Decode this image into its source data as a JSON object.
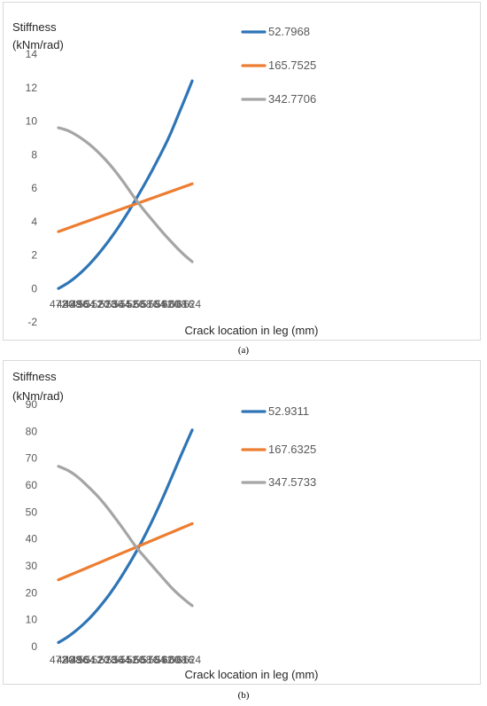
{
  "captions": [
    "(a)",
    "(b)"
  ],
  "chart_data": [
    {
      "type": "line",
      "ylabel": "Stiffness\n(kNm/rad)",
      "xlabel": "Crack location in leg (mm)",
      "categories": [
        "472",
        "480",
        "488",
        "496",
        "504",
        "512",
        "520",
        "528",
        "536",
        "544",
        "552",
        "560",
        "568",
        "576",
        "584",
        "592",
        "600",
        "608",
        "616",
        "624"
      ],
      "ylim": [
        -2,
        14
      ],
      "yticks": [
        -2,
        0,
        2,
        4,
        6,
        8,
        10,
        12,
        14
      ],
      "grid": false,
      "legend_position": "top-center, inside plot",
      "series": [
        {
          "name": "52.7968",
          "color": "#2e75b6",
          "values": [
            0.0,
            0.23,
            0.52,
            0.87,
            1.27,
            1.72,
            2.22,
            2.76,
            3.34,
            3.96,
            4.62,
            5.32,
            6.05,
            6.8,
            7.6,
            8.42,
            9.3,
            10.35,
            11.35,
            12.4
          ]
        },
        {
          "name": "165.7525",
          "color": "#ed7d31",
          "values": [
            3.4,
            3.55,
            3.7,
            3.85,
            4.0,
            4.15,
            4.3,
            4.45,
            4.6,
            4.75,
            4.9,
            5.05,
            5.2,
            5.35,
            5.5,
            5.65,
            5.8,
            5.95,
            6.1,
            6.25
          ]
        },
        {
          "name": "342.7706",
          "color": "#a5a5a5",
          "values": [
            9.6,
            9.5,
            9.3,
            9.05,
            8.75,
            8.4,
            8.0,
            7.55,
            7.05,
            6.5,
            5.9,
            5.3,
            4.75,
            4.25,
            3.75,
            3.25,
            2.8,
            2.35,
            1.95,
            1.6
          ]
        }
      ]
    },
    {
      "type": "line",
      "ylabel": "Stiffness\n(kNm/rad)",
      "xlabel": "Crack location in leg (mm)",
      "categories": [
        "472",
        "480",
        "488",
        "496",
        "504",
        "512",
        "520",
        "528",
        "536",
        "544",
        "552",
        "560",
        "568",
        "576",
        "584",
        "592",
        "600",
        "608",
        "616",
        "624"
      ],
      "ylim": [
        0,
        90
      ],
      "yticks": [
        0,
        10,
        20,
        30,
        40,
        50,
        60,
        70,
        80,
        90
      ],
      "grid": false,
      "legend_position": "top-center, inside plot",
      "series": [
        {
          "name": "52.9311",
          "color": "#2e75b6",
          "values": [
            1.5,
            3.0,
            4.9,
            7.0,
            9.4,
            12.1,
            15.2,
            18.5,
            22.2,
            26.2,
            30.5,
            35.0,
            39.8,
            45.0,
            50.5,
            56.3,
            62.4,
            68.6,
            74.6,
            80.5
          ]
        },
        {
          "name": "167.6325",
          "color": "#ed7d31",
          "values": [
            24.8,
            25.9,
            27.0,
            28.1,
            29.2,
            30.3,
            31.4,
            32.5,
            33.6,
            34.7,
            35.8,
            36.9,
            38.0,
            39.1,
            40.2,
            41.3,
            42.4,
            43.5,
            44.6,
            45.7
          ]
        },
        {
          "name": "347.5733",
          "color": "#a5a5a5",
          "values": [
            67.0,
            66.0,
            64.5,
            62.5,
            60.0,
            57.5,
            54.7,
            51.5,
            48.0,
            44.5,
            40.8,
            37.0,
            34.0,
            31.0,
            28.0,
            25.0,
            22.0,
            19.5,
            17.2,
            15.2
          ]
        }
      ]
    }
  ]
}
